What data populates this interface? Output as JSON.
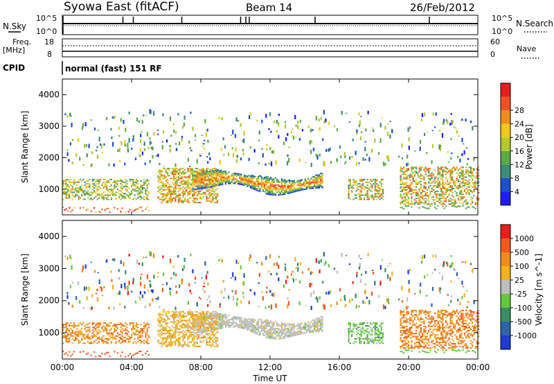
{
  "header": {
    "title": "Syowa East (fitACF)",
    "beam": "Beam 14",
    "date": "26/Feb/2012"
  },
  "panel_labels": {
    "nsky": "N.Sky",
    "nsearch": "N.Search",
    "freq": "Freq.",
    "freq_unit": "[MHz]",
    "nave": "Nave",
    "cpid": "CPID",
    "cpid_text": "normal (fast) 151 RF",
    "tick_1e5": "10^5",
    "tick_1e0": "10^0",
    "tick_18": "18",
    "tick_8": "8",
    "tick_60": "60",
    "tick_0": "0"
  },
  "axes": {
    "xlabel": "Time UT",
    "ylabel": "Slant Range [km]",
    "x_ticks": [
      "00:00",
      "04:00",
      "08:00",
      "12:00",
      "16:00",
      "20:00",
      "00:00"
    ],
    "y_ticks": [
      "1000",
      "2000",
      "3000",
      "4000"
    ],
    "xlim_hours": [
      0,
      24
    ],
    "ylim_km": [
      180,
      4500
    ]
  },
  "chart_data": [
    {
      "type": "line",
      "name": "noise",
      "x": [
        0,
        24
      ],
      "lines": [
        "N.Sky",
        "N.Search"
      ],
      "ticks_left": [
        "10^5",
        "10^0"
      ],
      "ticks_right": [
        "10^5",
        "10^0"
      ]
    },
    {
      "type": "line",
      "name": "frequency",
      "x": [
        0,
        24
      ],
      "lines": [
        "Freq.",
        "Nave"
      ],
      "ylim_left_mhz": [
        8,
        18
      ],
      "ylim_right": [
        0,
        60
      ]
    },
    {
      "type": "heatmap",
      "name": "power",
      "colorbar_label": "Power [dB]",
      "colorbar_ticks": [
        "4",
        "8",
        "12",
        "16",
        "20",
        "24",
        "28"
      ],
      "colorbar_colors": [
        "#1e1ef0",
        "#1e50c8",
        "#3c8c78",
        "#5aaa46",
        "#b4c832",
        "#f0c81e",
        "#f08c1e",
        "#f05028",
        "#e61e1e"
      ],
      "echo_regions": [
        {
          "t": [
            0.0,
            5.0
          ],
          "r": [
            600,
            1300
          ],
          "level": "medium"
        },
        {
          "t": [
            5.5,
            9.0
          ],
          "r": [
            500,
            1600
          ],
          "level": "medium"
        },
        {
          "t": [
            7.5,
            15.0
          ],
          "r": [
            900,
            1600
          ],
          "level": "high"
        },
        {
          "t": [
            16.5,
            18.5
          ],
          "r": [
            600,
            1700
          ],
          "level": "medium"
        },
        {
          "t": [
            19.5,
            24.0
          ],
          "r": [
            500,
            1700
          ],
          "level": "medium"
        }
      ]
    },
    {
      "type": "heatmap",
      "name": "velocity",
      "colorbar_label": "Velocity [m s^-1]",
      "colorbar_ticks": [
        "1000",
        "500",
        "100",
        "25",
        "-25",
        "-100",
        "-500",
        "-1000"
      ],
      "colorbar_colors": [
        "#1e3cd2",
        "#2d64aa",
        "#3c8c64",
        "#64c83c",
        "#bebebe",
        "#f0b41e",
        "#f08c1e",
        "#f05a1e",
        "#e61e1e"
      ]
    }
  ]
}
